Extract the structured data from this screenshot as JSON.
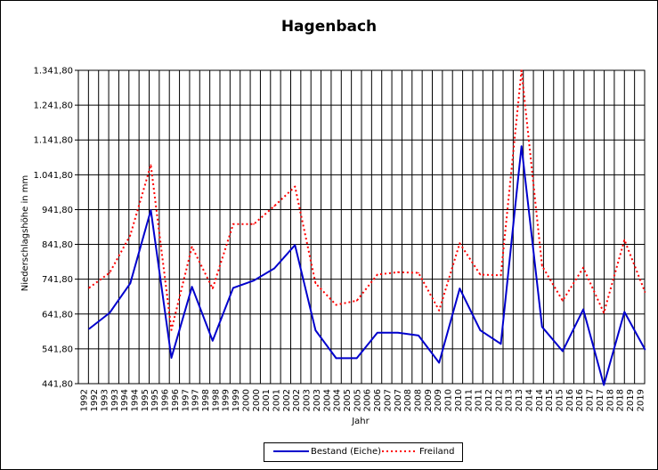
{
  "chart_data": {
    "type": "line",
    "title": "Hagenbach",
    "xlabel": "Jahr",
    "ylabel": "Niederschlagshöhe in mm",
    "categories": [
      "1992",
      "1993",
      "1994",
      "1995",
      "1996",
      "1997",
      "1998",
      "1999",
      "2000",
      "2001",
      "2002",
      "2003",
      "2004",
      "2005",
      "2006",
      "2007",
      "2008",
      "2009",
      "2010",
      "2011",
      "2012",
      "2013",
      "2014",
      "2015",
      "2016",
      "2017",
      "2018",
      "2019"
    ],
    "x_ticks": [
      "1992",
      "1992",
      "1993",
      "1993",
      "1994",
      "1994",
      "1995",
      "1995",
      "1996",
      "1996",
      "1997",
      "1997",
      "1998",
      "1998",
      "1999",
      "1999",
      "2000",
      "2000",
      "2001",
      "2001",
      "2002",
      "2002",
      "2003",
      "2003",
      "2004",
      "2004",
      "2005",
      "2005",
      "2006",
      "2006",
      "2007",
      "2007",
      "2008",
      "2008",
      "2009",
      "2009",
      "2010",
      "2010",
      "2011",
      "2011",
      "2012",
      "2012",
      "2013",
      "2013",
      "2014",
      "2014",
      "2015",
      "2015",
      "2016",
      "2016",
      "2017",
      "2017",
      "2018",
      "2018",
      "2019",
      "2019"
    ],
    "y_ticks": [
      "441,80",
      "541,80",
      "641,80",
      "741,80",
      "841,80",
      "941,80",
      "1.041,80",
      "1.141,80",
      "1.241,80",
      "1.341,80"
    ],
    "ylim": [
      441.8,
      1341.8
    ],
    "grid": true,
    "legend_position": "bottom",
    "series": [
      {
        "name": "Bestand (Eiche)",
        "color": "#0000cc",
        "style": "solid",
        "values": [
          599,
          645,
          730,
          940,
          516,
          720,
          565,
          717,
          738,
          773,
          840,
          595,
          515,
          515,
          588,
          588,
          580,
          502,
          715,
          595,
          556,
          1124,
          605,
          535,
          655,
          438,
          648,
          540
        ]
      },
      {
        "name": "Freiland",
        "color": "#ff0000",
        "style": "dotted",
        "values": [
          717,
          760,
          868,
          1070,
          596,
          835,
          715,
          900,
          900,
          952,
          1008,
          730,
          668,
          680,
          755,
          762,
          760,
          652,
          845,
          755,
          753,
          1341,
          780,
          680,
          775,
          645,
          855,
          705
        ]
      }
    ]
  }
}
